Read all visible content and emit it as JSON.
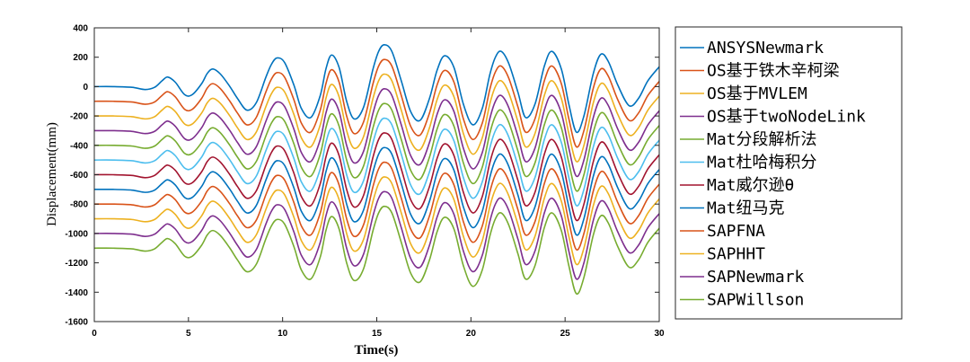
{
  "chart_data": {
    "type": "line",
    "title": "",
    "xlabel": "Time(s)",
    "ylabel": "Displacement(mm)",
    "xlim": [
      0,
      30
    ],
    "ylim": [
      -1600,
      400
    ],
    "xticks": [
      0,
      5,
      10,
      15,
      20,
      25,
      30
    ],
    "yticks": [
      400,
      200,
      0,
      -200,
      -400,
      -600,
      -800,
      -1000,
      -1200,
      -1400,
      -1600
    ],
    "grid": false,
    "legend_position": "outside-right",
    "x": [
      0,
      1,
      2,
      2.7,
      3.2,
      3.6,
      3.9,
      4.3,
      4.8,
      5.2,
      5.7,
      6.0,
      6.3,
      6.7,
      7.2,
      7.6,
      8.1,
      8.6,
      9.1,
      9.4,
      9.7,
      10.1,
      10.6,
      11.0,
      11.5,
      12.0,
      12.3,
      12.6,
      13.0,
      13.4,
      13.8,
      14.3,
      14.8,
      15.1,
      15.4,
      15.8,
      16.3,
      16.8,
      17.3,
      17.8,
      18.2,
      18.6,
      19.1,
      19.6,
      20.1,
      20.6,
      21.0,
      21.3,
      21.6,
      22.0,
      22.5,
      22.9,
      23.4,
      23.9,
      24.3,
      24.8,
      25.2,
      25.6,
      26.0,
      26.5,
      26.9,
      27.3,
      27.8,
      28.4,
      28.9,
      29.4,
      30
    ],
    "series": [
      {
        "name": "ANSYSNewmark",
        "color": "#0072BD",
        "values": [
          0,
          0,
          -5,
          -20,
          -5,
          40,
          65,
          30,
          -55,
          -55,
          20,
          90,
          120,
          85,
          0,
          -80,
          -160,
          -110,
          60,
          150,
          195,
          165,
          10,
          -150,
          -210,
          -60,
          120,
          215,
          130,
          -100,
          -220,
          -140,
          120,
          240,
          285,
          240,
          40,
          -170,
          -230,
          -80,
          110,
          210,
          130,
          -120,
          -260,
          -150,
          80,
          200,
          240,
          160,
          -40,
          -210,
          -120,
          140,
          240,
          120,
          -120,
          -310,
          -200,
          90,
          220,
          170,
          10,
          -130,
          -80,
          40,
          135
        ]
      },
      {
        "name": "OS基于铁木辛柯梁",
        "color": "#D95319",
        "values": [
          -100,
          -100,
          -105,
          -120,
          -105,
          -60,
          -35,
          -70,
          -155,
          -155,
          -80,
          -10,
          20,
          -15,
          -100,
          -180,
          -260,
          -210,
          -40,
          50,
          95,
          65,
          -90,
          -250,
          -310,
          -160,
          20,
          115,
          30,
          -200,
          -320,
          -240,
          20,
          140,
          185,
          140,
          -60,
          -270,
          -330,
          -180,
          10,
          110,
          30,
          -220,
          -360,
          -250,
          -20,
          100,
          140,
          60,
          -140,
          -310,
          -220,
          40,
          140,
          20,
          -220,
          -410,
          -300,
          -10,
          120,
          70,
          -90,
          -230,
          -180,
          -60,
          35
        ]
      },
      {
        "name": "OS基于MVLEM",
        "color": "#EDB120",
        "values": [
          -200,
          -200,
          -205,
          -220,
          -205,
          -160,
          -135,
          -170,
          -255,
          -255,
          -180,
          -110,
          -80,
          -115,
          -200,
          -280,
          -360,
          -310,
          -140,
          -50,
          -5,
          -35,
          -190,
          -350,
          -410,
          -260,
          -80,
          15,
          -70,
          -300,
          -420,
          -340,
          -80,
          40,
          85,
          40,
          -160,
          -370,
          -430,
          -280,
          -90,
          10,
          -70,
          -320,
          -460,
          -350,
          -120,
          0,
          40,
          -40,
          -240,
          -410,
          -320,
          -60,
          40,
          -80,
          -320,
          -510,
          -400,
          -110,
          20,
          -30,
          -190,
          -330,
          -280,
          -160,
          -65
        ]
      },
      {
        "name": "OS基于twoNodeLink",
        "color": "#7E2F8E",
        "values": [
          -300,
          -300,
          -305,
          -320,
          -305,
          -260,
          -235,
          -270,
          -355,
          -355,
          -280,
          -210,
          -180,
          -215,
          -300,
          -380,
          -460,
          -410,
          -240,
          -150,
          -105,
          -135,
          -290,
          -450,
          -510,
          -360,
          -180,
          -85,
          -170,
          -400,
          -520,
          -440,
          -180,
          -60,
          -15,
          -60,
          -260,
          -470,
          -530,
          -380,
          -190,
          -90,
          -170,
          -420,
          -560,
          -450,
          -220,
          -100,
          -60,
          -140,
          -340,
          -510,
          -420,
          -160,
          -60,
          -180,
          -420,
          -610,
          -500,
          -210,
          -80,
          -130,
          -290,
          -430,
          -380,
          -260,
          -165
        ]
      },
      {
        "name": "Mat分段解析法",
        "color": "#77AC30",
        "values": [
          -400,
          -400,
          -405,
          -420,
          -405,
          -360,
          -335,
          -370,
          -455,
          -455,
          -380,
          -310,
          -280,
          -315,
          -400,
          -480,
          -560,
          -510,
          -340,
          -250,
          -205,
          -235,
          -390,
          -550,
          -610,
          -460,
          -280,
          -185,
          -270,
          -500,
          -620,
          -540,
          -280,
          -160,
          -115,
          -160,
          -360,
          -570,
          -630,
          -480,
          -290,
          -190,
          -270,
          -520,
          -660,
          -550,
          -320,
          -200,
          -160,
          -240,
          -440,
          -610,
          -520,
          -260,
          -160,
          -280,
          -520,
          -710,
          -600,
          -310,
          -180,
          -230,
          -390,
          -530,
          -480,
          -360,
          -265
        ]
      },
      {
        "name": "Mat杜哈梅积分",
        "color": "#4DBEEE",
        "values": [
          -500,
          -500,
          -505,
          -520,
          -505,
          -460,
          -435,
          -470,
          -555,
          -555,
          -480,
          -410,
          -380,
          -415,
          -500,
          -580,
          -660,
          -610,
          -440,
          -350,
          -305,
          -335,
          -490,
          -650,
          -710,
          -560,
          -380,
          -285,
          -370,
          -600,
          -720,
          -640,
          -380,
          -260,
          -215,
          -260,
          -460,
          -670,
          -730,
          -580,
          -390,
          -290,
          -370,
          -620,
          -760,
          -650,
          -420,
          -300,
          -260,
          -340,
          -540,
          -710,
          -620,
          -360,
          -260,
          -380,
          -620,
          -810,
          -700,
          -410,
          -280,
          -330,
          -490,
          -630,
          -580,
          -460,
          -365
        ]
      },
      {
        "name": "Mat威尔逊θ",
        "color": "#A2142F",
        "values": [
          -600,
          -600,
          -605,
          -620,
          -605,
          -560,
          -535,
          -570,
          -655,
          -655,
          -580,
          -510,
          -480,
          -515,
          -600,
          -680,
          -760,
          -710,
          -540,
          -450,
          -405,
          -435,
          -590,
          -750,
          -810,
          -660,
          -480,
          -385,
          -470,
          -700,
          -820,
          -740,
          -480,
          -360,
          -315,
          -360,
          -560,
          -770,
          -830,
          -680,
          -490,
          -390,
          -470,
          -720,
          -860,
          -750,
          -520,
          -400,
          -360,
          -440,
          -640,
          -810,
          -720,
          -460,
          -360,
          -480,
          -720,
          -910,
          -800,
          -510,
          -380,
          -430,
          -590,
          -730,
          -680,
          -560,
          -465
        ]
      },
      {
        "name": "Mat纽马克",
        "color": "#0072BD",
        "values": [
          -700,
          -700,
          -705,
          -720,
          -705,
          -660,
          -635,
          -670,
          -755,
          -755,
          -680,
          -610,
          -580,
          -615,
          -700,
          -780,
          -860,
          -810,
          -640,
          -550,
          -505,
          -535,
          -690,
          -850,
          -910,
          -760,
          -580,
          -485,
          -570,
          -800,
          -920,
          -840,
          -580,
          -460,
          -415,
          -460,
          -660,
          -870,
          -930,
          -780,
          -590,
          -490,
          -570,
          -820,
          -960,
          -850,
          -620,
          -500,
          -460,
          -540,
          -740,
          -910,
          -820,
          -560,
          -460,
          -580,
          -820,
          -1010,
          -900,
          -610,
          -480,
          -530,
          -690,
          -830,
          -780,
          -660,
          -565
        ]
      },
      {
        "name": "SAPFNA",
        "color": "#D95319",
        "values": [
          -800,
          -800,
          -805,
          -820,
          -805,
          -760,
          -735,
          -770,
          -855,
          -855,
          -780,
          -710,
          -680,
          -715,
          -800,
          -880,
          -960,
          -910,
          -740,
          -650,
          -605,
          -635,
          -790,
          -950,
          -1010,
          -860,
          -680,
          -585,
          -670,
          -900,
          -1020,
          -940,
          -680,
          -560,
          -515,
          -560,
          -760,
          -970,
          -1030,
          -880,
          -690,
          -590,
          -670,
          -920,
          -1060,
          -950,
          -720,
          -600,
          -560,
          -640,
          -840,
          -1010,
          -920,
          -660,
          -560,
          -680,
          -920,
          -1110,
          -1000,
          -710,
          -580,
          -630,
          -790,
          -930,
          -880,
          -760,
          -665
        ]
      },
      {
        "name": "SAPHHT",
        "color": "#EDB120",
        "values": [
          -900,
          -900,
          -905,
          -920,
          -905,
          -860,
          -835,
          -870,
          -955,
          -955,
          -880,
          -810,
          -780,
          -815,
          -900,
          -980,
          -1060,
          -1010,
          -840,
          -750,
          -705,
          -735,
          -890,
          -1050,
          -1110,
          -960,
          -780,
          -685,
          -770,
          -1000,
          -1120,
          -1040,
          -780,
          -660,
          -615,
          -660,
          -860,
          -1070,
          -1130,
          -980,
          -790,
          -690,
          -770,
          -1020,
          -1160,
          -1050,
          -820,
          -700,
          -660,
          -740,
          -940,
          -1110,
          -1020,
          -760,
          -660,
          -780,
          -1020,
          -1210,
          -1100,
          -810,
          -680,
          -730,
          -890,
          -1030,
          -980,
          -860,
          -765
        ]
      },
      {
        "name": "SAPNewmark",
        "color": "#7E2F8E",
        "values": [
          -1000,
          -1000,
          -1005,
          -1020,
          -1005,
          -960,
          -935,
          -970,
          -1055,
          -1055,
          -980,
          -910,
          -880,
          -915,
          -1000,
          -1080,
          -1160,
          -1110,
          -940,
          -850,
          -805,
          -835,
          -990,
          -1150,
          -1210,
          -1060,
          -880,
          -785,
          -870,
          -1100,
          -1220,
          -1140,
          -880,
          -760,
          -715,
          -760,
          -960,
          -1170,
          -1230,
          -1080,
          -890,
          -790,
          -870,
          -1120,
          -1260,
          -1150,
          -920,
          -800,
          -760,
          -840,
          -1040,
          -1210,
          -1120,
          -860,
          -760,
          -880,
          -1120,
          -1310,
          -1200,
          -910,
          -780,
          -830,
          -990,
          -1130,
          -1080,
          -960,
          -865
        ]
      },
      {
        "name": "SAPWillson",
        "color": "#77AC30",
        "values": [
          -1100,
          -1100,
          -1105,
          -1120,
          -1105,
          -1060,
          -1035,
          -1070,
          -1155,
          -1155,
          -1080,
          -1010,
          -980,
          -1015,
          -1100,
          -1180,
          -1260,
          -1210,
          -1040,
          -950,
          -905,
          -935,
          -1090,
          -1250,
          -1310,
          -1160,
          -980,
          -885,
          -970,
          -1200,
          -1320,
          -1240,
          -980,
          -860,
          -815,
          -860,
          -1060,
          -1270,
          -1330,
          -1180,
          -990,
          -890,
          -970,
          -1220,
          -1360,
          -1250,
          -1020,
          -900,
          -860,
          -940,
          -1140,
          -1310,
          -1220,
          -960,
          -860,
          -980,
          -1220,
          -1410,
          -1300,
          -1010,
          -880,
          -930,
          -1090,
          -1230,
          -1180,
          -1060,
          -965
        ]
      }
    ]
  }
}
